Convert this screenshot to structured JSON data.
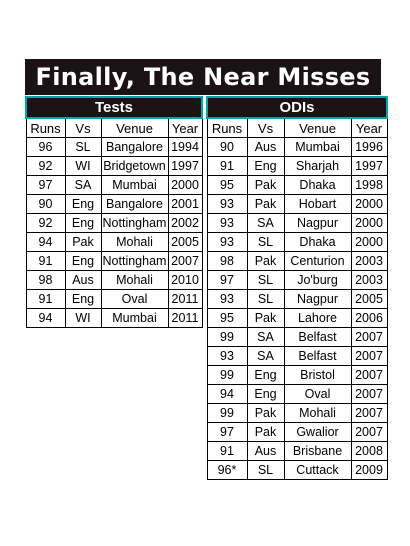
{
  "title": "Finally, The Near Misses",
  "tests": {
    "heading": "Tests",
    "columns": [
      "Runs",
      "Vs",
      "Venue",
      "Year"
    ],
    "rows": [
      [
        "96",
        "SL",
        "Bangalore",
        "1994"
      ],
      [
        "92",
        "WI",
        "Bridgetown",
        "1997"
      ],
      [
        "97",
        "SA",
        "Mumbai",
        "2000"
      ],
      [
        "90",
        "Eng",
        "Bangalore",
        "2001"
      ],
      [
        "92",
        "Eng",
        "Nottingham",
        "2002"
      ],
      [
        "94",
        "Pak",
        "Mohali",
        "2005"
      ],
      [
        "91",
        "Eng",
        "Nottingham",
        "2007"
      ],
      [
        "98",
        "Aus",
        "Mohali",
        "2010"
      ],
      [
        "91",
        "Eng",
        "Oval",
        "2011"
      ],
      [
        "94",
        "WI",
        "Mumbai",
        "2011"
      ]
    ]
  },
  "odis": {
    "heading": "ODIs",
    "columns": [
      "Runs",
      "Vs",
      "Venue",
      "Year"
    ],
    "rows": [
      [
        "90",
        "Aus",
        "Mumbai",
        "1996"
      ],
      [
        "91",
        "Eng",
        "Sharjah",
        "1997"
      ],
      [
        "95",
        "Pak",
        "Dhaka",
        "1998"
      ],
      [
        "93",
        "Pak",
        "Hobart",
        "2000"
      ],
      [
        "93",
        "SA",
        "Nagpur",
        "2000"
      ],
      [
        "93",
        "SL",
        "Dhaka",
        "2000"
      ],
      [
        "98",
        "Pak",
        "Centurion",
        "2003"
      ],
      [
        "97",
        "SL",
        "Jo'burg",
        "2003"
      ],
      [
        "93",
        "SL",
        "Nagpur",
        "2005"
      ],
      [
        "95",
        "Pak",
        "Lahore",
        "2006"
      ],
      [
        "99",
        "SA",
        "Belfast",
        "2007"
      ],
      [
        "93",
        "SA",
        "Belfast",
        "2007"
      ],
      [
        "99",
        "Eng",
        "Bristol",
        "2007"
      ],
      [
        "94",
        "Eng",
        "Oval",
        "2007"
      ],
      [
        "99",
        "Pak",
        "Mohali",
        "2007"
      ],
      [
        "97",
        "Pak",
        "Gwalior",
        "2007"
      ],
      [
        "91",
        "Aus",
        "Brisbane",
        "2008"
      ],
      [
        "96*",
        "SL",
        "Cuttack",
        "2009"
      ]
    ]
  },
  "colors": {
    "header_bg": "#1a1214",
    "header_border": "#00a7a7"
  }
}
